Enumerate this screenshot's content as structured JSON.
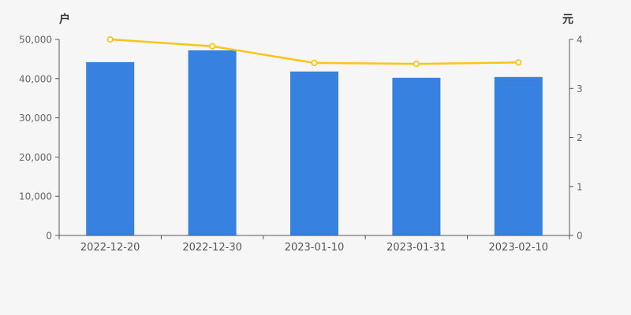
{
  "chart_data": {
    "type": "bar+line",
    "categories": [
      "2022-12-20",
      "2022-12-30",
      "2023-01-10",
      "2023-01-31",
      "2023-02-10"
    ],
    "series": [
      {
        "name": "bar-series",
        "chart_type": "bar",
        "axis": "left",
        "color": "#3781E0",
        "values": [
          44200,
          47200,
          41800,
          40200,
          40400
        ]
      },
      {
        "name": "line-series",
        "chart_type": "line",
        "axis": "right",
        "color": "#FAC515",
        "marker_fill": "#FFFFFF",
        "values": [
          4.0,
          3.86,
          3.52,
          3.5,
          3.53
        ]
      }
    ],
    "left_axis": {
      "name": "户",
      "min": 0,
      "max": 50000,
      "interval": 10000,
      "tick_labels": [
        "0",
        "10,000",
        "20,000",
        "30,000",
        "40,000",
        "50,000"
      ]
    },
    "right_axis": {
      "name": "元",
      "min": 0,
      "max": 4,
      "interval": 1,
      "tick_labels": [
        "0",
        "1",
        "2",
        "3",
        "4"
      ]
    },
    "grid": false,
    "legend": "none",
    "title": "",
    "background": "#F6F6F7",
    "axis_line_color": "#555555",
    "tick_label_color": "#666666",
    "x_label_color": "#555555",
    "axis_name_color": "#333333"
  }
}
